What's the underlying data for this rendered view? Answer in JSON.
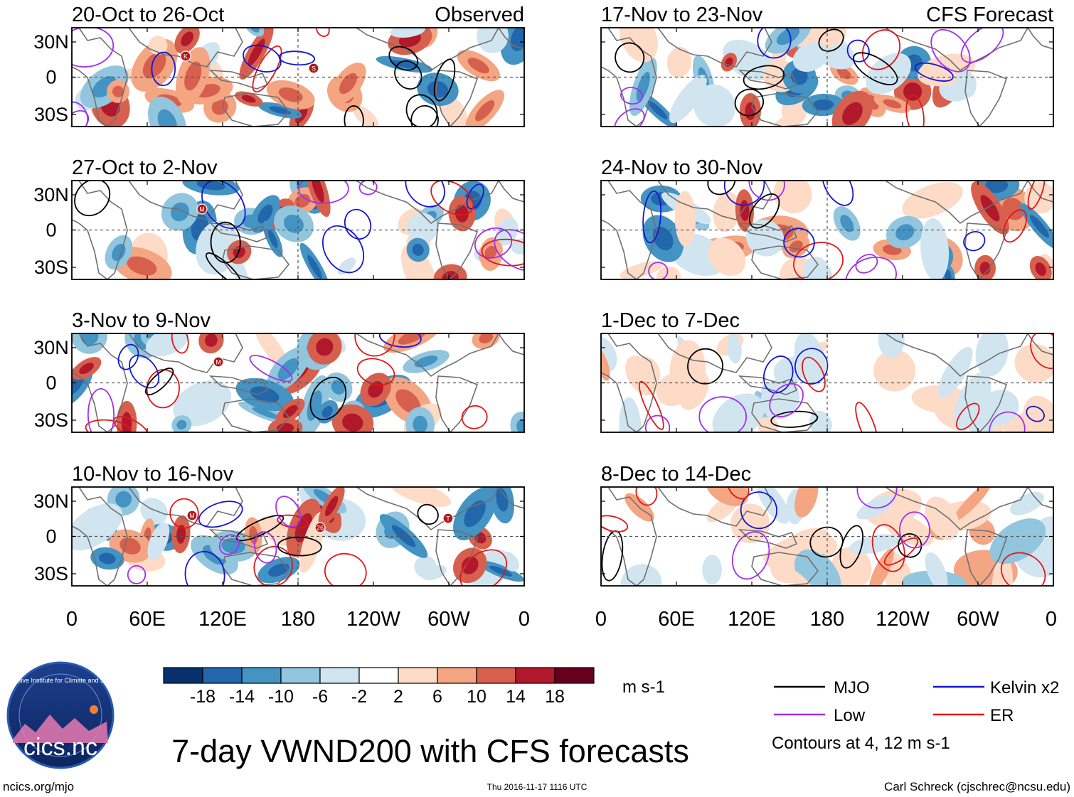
{
  "figure_title": "7-day VWND200 with CFS forecasts",
  "units": "m s-1",
  "columns": [
    {
      "heading": "Observed",
      "panels": [
        {
          "title": "20-Oct to 26-Oct",
          "storms": [
            "K",
            "S"
          ]
        },
        {
          "title": "27-Oct to 2-Nov",
          "storms": [
            "M"
          ]
        },
        {
          "title": "3-Nov to 9-Nov",
          "storms": [
            "M"
          ]
        },
        {
          "title": "10-Nov to 16-Nov",
          "storms": [
            "M",
            "26",
            "T"
          ]
        }
      ]
    },
    {
      "heading": "CFS Forecast",
      "panels": [
        {
          "title": "17-Nov to 23-Nov",
          "storms": []
        },
        {
          "title": "24-Nov to 30-Nov",
          "storms": []
        },
        {
          "title": "1-Dec to 7-Dec",
          "storms": []
        },
        {
          "title": "8-Dec to 14-Dec",
          "storms": []
        }
      ]
    }
  ],
  "lat_labels": [
    "30N",
    "0",
    "30S"
  ],
  "lon_labels": [
    "0",
    "60E",
    "120E",
    "180",
    "120W",
    "60W",
    "0"
  ],
  "colorbar": {
    "colors": [
      "#08306b",
      "#2266ac",
      "#4393c3",
      "#92c5de",
      "#d1e5f0",
      "#ffffff",
      "#fddbc7",
      "#f4a582",
      "#d6604d",
      "#b2182b",
      "#67001f"
    ],
    "labels": [
      "-18",
      "-14",
      "-10",
      "-6",
      "-2",
      "2",
      "6",
      "10",
      "14",
      "18"
    ]
  },
  "legend": {
    "items": [
      {
        "label": "MJO",
        "color": "#000000"
      },
      {
        "label": "Kelvin x2",
        "color": "#1515d6"
      },
      {
        "label": "Low",
        "color": "#a030f0"
      },
      {
        "label": "ER",
        "color": "#e01818"
      }
    ],
    "note": "Contours at 4, 12 m s-1"
  },
  "logo_text": "cics.nc",
  "logo_ring_text": "Cooperative Institute for Climate and Satellites",
  "footer": {
    "left": "ncics.org/mjo",
    "center": "Thu 2016-11-17 1116 UTC",
    "right": "Carl Schreck (cjschrec@ncsu.edu)"
  }
}
